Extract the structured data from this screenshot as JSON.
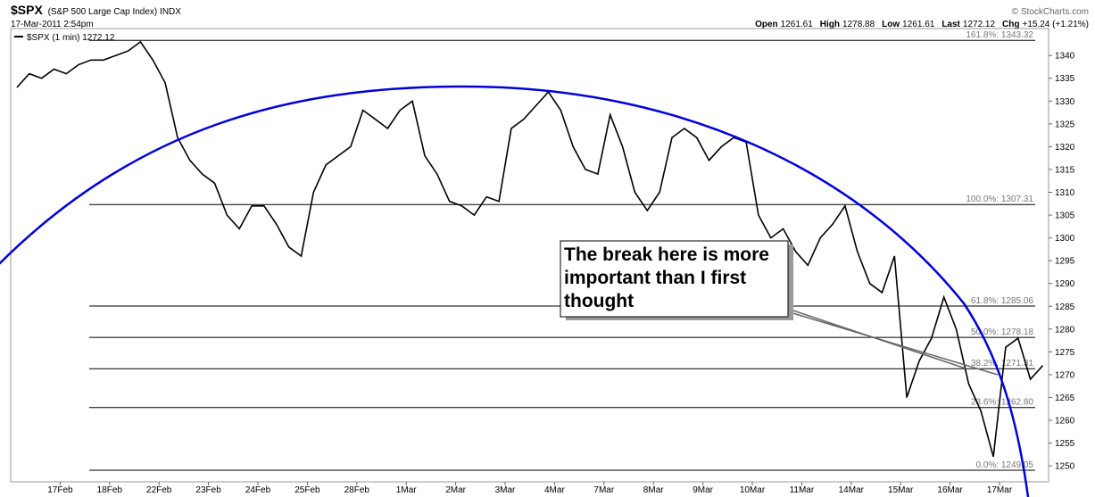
{
  "chart_data": {
    "type": "line",
    "title": "$SPX",
    "subtitle": "(S&P 500 Large Cap Index) INDX",
    "date": "17-Mar-2011 2:54pm",
    "source": "© StockCharts.com",
    "quote": [
      {
        "label": "Open",
        "value": "1261.61"
      },
      {
        "label": "High",
        "value": "1278.88"
      },
      {
        "label": "Low",
        "value": "1261.61"
      },
      {
        "label": "Last",
        "value": "1272.12"
      },
      {
        "label": "Chg",
        "value": "+15.24 (+1.21%)"
      }
    ],
    "annotation": "The break here is more important than I first thought",
    "legend": "upper left",
    "grid": false,
    "categories": [
      null,
      null,
      null,
      null,
      "17Feb",
      null,
      null,
      null,
      "18Feb",
      null,
      null,
      null,
      "22Feb",
      null,
      null,
      null,
      "23Feb",
      null,
      null,
      null,
      "24Feb",
      null,
      null,
      null,
      "25Feb",
      null,
      null,
      null,
      "28Feb",
      null,
      null,
      null,
      "1Mar",
      null,
      null,
      null,
      "2Mar",
      null,
      null,
      null,
      "3Mar",
      null,
      null,
      null,
      "4Mar",
      null,
      null,
      null,
      "7Mar",
      null,
      null,
      null,
      "8Mar",
      null,
      null,
      null,
      "9Mar",
      null,
      null,
      null,
      "10Mar",
      null,
      null,
      null,
      "11Mar",
      null,
      null,
      null,
      "14Mar",
      null,
      null,
      null,
      "15Mar",
      null,
      null,
      null,
      "16Mar",
      null,
      null,
      null,
      "17Mar",
      null,
      null,
      null
    ],
    "series": [
      {
        "name": "$SPX (1 min) 1272.12",
        "color": "#000000",
        "values": [
          1333,
          1336,
          1335,
          1337,
          1336,
          1338,
          1339,
          1339,
          1340,
          1341,
          1343,
          1339,
          1334,
          1322,
          1317,
          1314,
          1312,
          1305,
          1302,
          1307,
          1307,
          1303,
          1298,
          1296,
          1310,
          1316,
          1318,
          1320,
          1328,
          1326,
          1324,
          1328,
          1330,
          1318,
          1314,
          1308,
          1307,
          1305,
          1309,
          1308,
          1324,
          1326,
          1329,
          1332,
          1328,
          1320,
          1315,
          1314,
          1327,
          1320,
          1310,
          1306,
          1310,
          1322,
          1324,
          1322,
          1317,
          1320,
          1322,
          1321,
          1305,
          1300,
          1302,
          1297,
          1294,
          1300,
          1303,
          1307,
          1297,
          1290,
          1288,
          1296,
          1265,
          1273,
          1278,
          1287,
          1280,
          1268,
          1262,
          1252,
          1276,
          1278,
          1269,
          1272
        ]
      }
    ],
    "fib_levels": [
      {
        "value": 1343.32,
        "label": "161.8%: 1343.32"
      },
      {
        "value": 1307.31,
        "label": "100.0%: 1307.31"
      },
      {
        "value": 1285.06,
        "label": "61.8%: 1285.06"
      },
      {
        "value": 1278.18,
        "label": "50.0%: 1278.18"
      },
      {
        "value": 1271.31,
        "label": "38.2%: 1271.31"
      },
      {
        "value": 1262.8,
        "label": "23.6%: 1262.80"
      },
      {
        "value": 1249.05,
        "label": "0.0%: 1249.05"
      }
    ],
    "ylim": [
      1246.5,
      1346.3
    ],
    "yticks": [
      1250,
      1255,
      1260,
      1265,
      1270,
      1275,
      1280,
      1285,
      1290,
      1295,
      1300,
      1305,
      1310,
      1315,
      1320,
      1325,
      1330,
      1335,
      1340
    ]
  }
}
